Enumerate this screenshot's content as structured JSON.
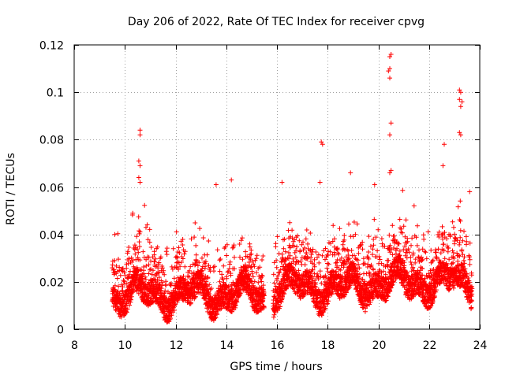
{
  "chart_data": {
    "type": "scatter",
    "title": "Day 206 of 2022, Rate Of TEC Index for receiver cpvg",
    "xlabel": "GPS time / hours",
    "ylabel": "ROTI / TECUs",
    "xlim": [
      8,
      24
    ],
    "ylim": [
      0,
      0.12
    ],
    "xticks": [
      8,
      10,
      12,
      14,
      16,
      18,
      20,
      22,
      24
    ],
    "yticks": [
      0,
      0.02,
      0.04,
      0.06,
      0.08,
      0.1,
      0.12
    ],
    "xtick_labels": [
      "8",
      "10",
      "12",
      "14",
      "16",
      "18",
      "20",
      "22",
      "24"
    ],
    "ytick_labels": [
      "0",
      "0.02",
      "0.04",
      "0.06",
      "0.08",
      "0.1",
      "0.12"
    ],
    "grid": true,
    "marker": "+",
    "series_color": "#ff0000",
    "data_range": {
      "x_start": 9.5,
      "x_end": 23.7,
      "gap_start": 15.5,
      "gap_end": 15.85
    },
    "notable_points": [
      {
        "x": 9.6,
        "y": 0.04
      },
      {
        "x": 10.6,
        "y": 0.084
      },
      {
        "x": 10.6,
        "y": 0.082
      },
      {
        "x": 10.55,
        "y": 0.071
      },
      {
        "x": 10.6,
        "y": 0.069
      },
      {
        "x": 10.55,
        "y": 0.064
      },
      {
        "x": 10.6,
        "y": 0.062
      },
      {
        "x": 13.6,
        "y": 0.061
      },
      {
        "x": 14.2,
        "y": 0.063
      },
      {
        "x": 16.2,
        "y": 0.062
      },
      {
        "x": 17.75,
        "y": 0.079
      },
      {
        "x": 17.8,
        "y": 0.078
      },
      {
        "x": 17.7,
        "y": 0.062
      },
      {
        "x": 18.9,
        "y": 0.066
      },
      {
        "x": 20.5,
        "y": 0.116
      },
      {
        "x": 20.45,
        "y": 0.115
      },
      {
        "x": 20.45,
        "y": 0.11
      },
      {
        "x": 20.4,
        "y": 0.109
      },
      {
        "x": 20.45,
        "y": 0.106
      },
      {
        "x": 20.5,
        "y": 0.087
      },
      {
        "x": 20.45,
        "y": 0.082
      },
      {
        "x": 20.5,
        "y": 0.067
      },
      {
        "x": 20.45,
        "y": 0.066
      },
      {
        "x": 22.6,
        "y": 0.078
      },
      {
        "x": 22.55,
        "y": 0.069
      },
      {
        "x": 23.2,
        "y": 0.101
      },
      {
        "x": 23.25,
        "y": 0.1
      },
      {
        "x": 23.2,
        "y": 0.097
      },
      {
        "x": 23.3,
        "y": 0.096
      },
      {
        "x": 23.25,
        "y": 0.094
      },
      {
        "x": 23.2,
        "y": 0.083
      },
      {
        "x": 23.25,
        "y": 0.082
      },
      {
        "x": 23.6,
        "y": 0.058
      }
    ],
    "bulk_distribution": {
      "typical_min": 0.003,
      "typical_median": 0.012,
      "typical_upper": 0.045
    }
  }
}
